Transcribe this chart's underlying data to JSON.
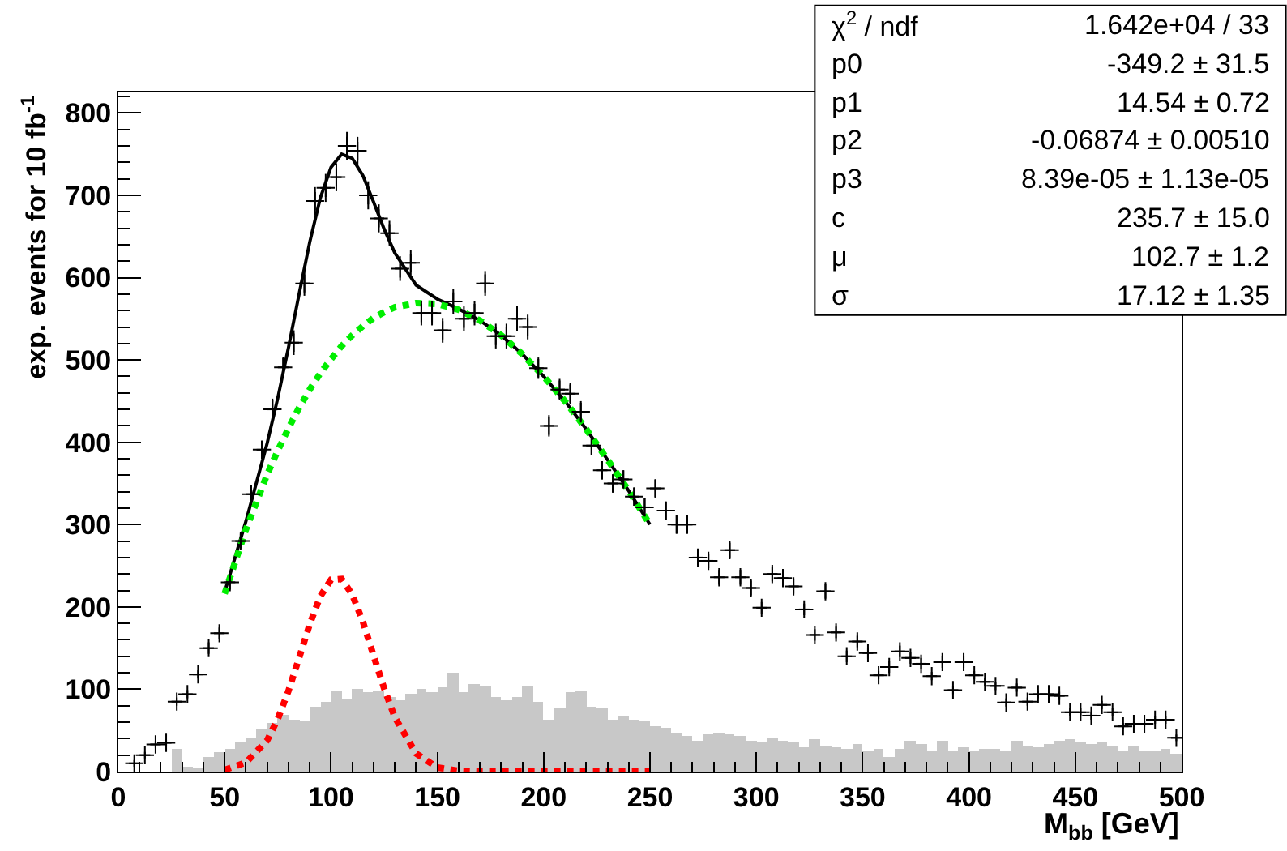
{
  "chart_data": {
    "type": "scatter",
    "xlabel": "M$_{bb}$ [GeV]",
    "ylabel": "exp. events for 10 fb$^{-1}$",
    "xlim": [
      0,
      500
    ],
    "xticks": [
      0,
      50,
      100,
      150,
      200,
      250,
      300,
      350,
      400,
      450,
      500
    ],
    "ylim": [
      0,
      825
    ],
    "yticks": [
      0,
      100,
      200,
      300,
      400,
      500,
      600,
      700,
      800
    ],
    "grid": false,
    "legend": false,
    "annotations": [
      "χ$^{2}$ / ndf",
      "1.642e+04 / 33",
      "p0",
      "-349.2 ± 31.5",
      "p1",
      "14.54 ± 0.72",
      "p2",
      "-0.06874 ± 0.00510",
      "p3",
      "8.39e-05 ± 1.13e-05",
      "c",
      "235.7 ± 15.0",
      "μ",
      "102.7 ± 1.2",
      "σ",
      "17.12 ± 1.35"
    ],
    "series": [
      {
        "type": "histogram",
        "color": "#c8c8c8",
        "bins": [
          0,
          5,
          10,
          15,
          20,
          25,
          30,
          35,
          40,
          45,
          50,
          55,
          60,
          65,
          70,
          75,
          80,
          85,
          90,
          95,
          100,
          105,
          110,
          115,
          120,
          125,
          130,
          135,
          140,
          145,
          150,
          155,
          160,
          165,
          170,
          175,
          180,
          185,
          190,
          195,
          200,
          205,
          210,
          215,
          220,
          225,
          230,
          235,
          240,
          245,
          250,
          255,
          260,
          265,
          270,
          275,
          280,
          285,
          290,
          295,
          300,
          305,
          310,
          315,
          320,
          325,
          330,
          335,
          340,
          345,
          350,
          355,
          360,
          365,
          370,
          375,
          380,
          385,
          390,
          395,
          400,
          405,
          410,
          415,
          420,
          425,
          430,
          435,
          440,
          445,
          450,
          455,
          460,
          465,
          470,
          475,
          480,
          485,
          490,
          495,
          500
        ],
        "values": [
          0,
          0,
          0,
          0,
          0,
          28,
          5,
          2,
          17,
          24,
          27,
          35,
          41,
          51,
          59,
          68,
          64,
          61,
          78,
          84,
          99,
          89,
          100,
          97,
          99,
          91,
          87,
          94,
          100,
          96,
          102,
          120,
          97,
          107,
          104,
          91,
          87,
          90,
          104,
          84,
          64,
          76,
          96,
          99,
          79,
          76,
          63,
          66,
          64,
          61,
          55,
          53,
          48,
          43,
          38,
          45,
          48,
          46,
          43,
          38,
          35,
          41,
          38,
          35,
          30,
          39,
          32,
          30,
          28,
          33,
          26,
          28,
          18,
          28,
          37,
          33,
          26,
          38,
          25,
          30,
          26,
          28,
          28,
          26,
          38,
          32,
          30,
          33,
          38,
          39,
          35,
          33,
          35,
          32,
          25,
          32,
          25,
          26,
          28,
          22
        ]
      },
      {
        "color": "#000000",
        "marker": "cross",
        "x": [
          7.5,
          12.5,
          17.5,
          22.5,
          27.5,
          32.5,
          37.5,
          42.5,
          47.5,
          52.5,
          57.5,
          62.5,
          67.5,
          72.5,
          77.5,
          82.5,
          87.5,
          92.5,
          97.5,
          102.5,
          107.5,
          112.5,
          117.5,
          122.5,
          127.5,
          132.5,
          137.5,
          142.5,
          147.5,
          152.5,
          157.5,
          162.5,
          167.5,
          172.5,
          177.5,
          182.5,
          187.5,
          192.5,
          197.5,
          202.5,
          207.5,
          212.5,
          217.5,
          222.5,
          227.5,
          232.5,
          237.5,
          242.5,
          247.5,
          252.5,
          257.5,
          262.5,
          267.5,
          272.5,
          277.5,
          282.5,
          287.5,
          292.5,
          297.5,
          302.5,
          307.5,
          312.5,
          317.5,
          322.5,
          327.5,
          332.5,
          337.5,
          342.5,
          347.5,
          352.5,
          357.5,
          362.5,
          367.5,
          372.5,
          377.5,
          382.5,
          387.5,
          392.5,
          397.5,
          402.5,
          407.5,
          412.5,
          417.5,
          422.5,
          427.5,
          432.5,
          437.5,
          442.5,
          447.5,
          452.5,
          457.5,
          462.5,
          467.5,
          472.5,
          477.5,
          482.5,
          487.5,
          492.5,
          497.5
        ],
        "values": [
          10,
          20,
          33,
          35,
          85,
          94,
          118,
          150,
          168,
          230,
          280,
          337,
          391,
          440,
          491,
          521,
          593,
          693,
          709,
          722,
          760,
          754,
          700,
          672,
          654,
          611,
          618,
          557,
          557,
          536,
          571,
          550,
          557,
          593,
          529,
          529,
          550,
          540,
          490,
          420,
          464,
          459,
          437,
          396,
          366,
          350,
          355,
          334,
          321,
          344,
          317,
          300,
          300,
          260,
          256,
          236,
          269,
          236,
          223,
          199,
          240,
          235,
          225,
          197,
          166,
          219,
          169,
          140,
          158,
          144,
          117,
          127,
          146,
          138,
          131,
          116,
          133,
          99,
          133,
          117,
          109,
          104,
          84,
          102,
          85,
          94,
          94,
          92,
          72,
          72,
          68,
          81,
          72,
          55,
          58,
          58,
          63,
          63,
          41
        ],
        "errors": [
          4,
          4,
          4,
          4,
          5,
          5,
          5,
          7,
          7,
          9,
          9,
          11,
          11,
          13,
          13,
          15,
          15,
          17,
          17,
          17,
          17,
          17,
          17,
          17,
          15,
          15,
          15,
          15,
          15,
          15,
          15,
          15,
          15,
          15,
          15,
          15,
          15,
          15,
          13,
          13,
          13,
          13,
          13,
          11,
          11,
          11,
          11,
          11,
          11,
          11,
          11,
          11,
          11,
          9,
          9,
          9,
          9,
          9,
          9,
          7,
          9,
          9,
          9,
          7,
          7,
          9,
          7,
          7,
          7,
          7,
          5,
          7,
          7,
          7,
          7,
          5,
          7,
          5,
          7,
          5,
          5,
          5,
          5,
          5,
          5,
          5,
          5,
          5,
          5,
          5,
          5,
          5,
          5,
          4,
          4,
          4,
          5,
          5,
          4
        ],
        "xerrors": [
          2.5,
          2.5,
          2.5,
          2.5,
          2.5,
          2.5,
          2.5,
          2.5,
          2.5,
          2.5,
          2.5,
          2.5,
          2.5,
          2.5,
          2.5,
          2.5,
          2.5,
          2.5,
          2.5,
          2.5,
          2.5,
          2.5,
          2.5,
          2.5,
          2.5,
          2.5,
          2.5,
          2.5,
          2.5,
          2.5,
          2.5,
          2.5,
          2.5,
          2.5,
          2.5,
          2.5,
          2.5,
          2.5,
          2.5,
          2.5,
          2.5,
          2.5,
          2.5,
          2.5,
          2.5,
          2.5,
          2.5,
          2.5,
          2.5,
          2.5,
          2.5,
          2.5,
          2.5,
          2.5,
          2.5,
          2.5,
          2.5,
          2.5,
          2.5,
          2.5,
          2.5,
          2.5,
          2.5,
          2.5,
          2.5,
          2.5,
          2.5,
          2.5,
          2.5,
          2.5,
          2.5,
          2.5,
          2.5,
          2.5,
          2.5,
          2.5,
          2.5,
          2.5,
          2.5,
          2.5,
          2.5,
          2.5,
          2.5,
          2.5,
          2.5,
          2.5,
          2.5,
          2.5,
          2.5,
          2.5,
          2.5,
          2.5,
          2.5,
          2.5,
          2.5,
          2.5,
          2.5,
          2.5,
          2.5
        ]
      },
      {
        "type": "line",
        "color": "#000000",
        "line_style": "solid",
        "x": [
          50,
          60,
          70,
          75,
          80,
          85,
          90,
          95,
          100,
          105,
          110,
          115,
          120,
          125,
          130,
          140,
          150,
          160,
          170,
          180,
          190,
          200,
          210,
          220,
          230,
          240,
          250
        ],
        "values": [
          218,
          304,
          399,
          454,
          515,
          580,
          643,
          697,
          734,
          750,
          745,
          724,
          692,
          659,
          630,
          591,
          574,
          562,
          548,
          530,
          507,
          480,
          450,
          416,
          379,
          341,
          300
        ]
      },
      {
        "type": "line",
        "color": "#00ee00",
        "line_style": "dotted",
        "x": [
          50,
          60,
          70,
          75,
          80,
          85,
          90,
          95,
          100,
          105,
          110,
          115,
          120,
          125,
          130,
          140,
          150,
          160,
          170,
          180,
          190,
          200,
          210,
          220,
          230,
          240,
          250
        ],
        "values": [
          216,
          294,
          361,
          390,
          417,
          442,
          464,
          484,
          501,
          517,
          530,
          541,
          551,
          558,
          564,
          569,
          568,
          561,
          548,
          530,
          507,
          480,
          450,
          416,
          379,
          341,
          300
        ]
      },
      {
        "type": "line",
        "color": "#ff0000",
        "line_style": "dotted",
        "x": [
          50,
          60,
          70,
          75,
          80,
          85,
          90,
          95,
          100,
          105,
          110,
          115,
          120,
          125,
          130,
          140,
          150,
          160,
          170,
          180,
          190,
          200,
          210,
          220,
          230,
          240,
          250
        ],
        "values": [
          2,
          11,
          38,
          64,
          98,
          138,
          179,
          213,
          233,
          234,
          215,
          182,
          141,
          101,
          66,
          22,
          5,
          1,
          0,
          0,
          0,
          0,
          0,
          0,
          0,
          0,
          0
        ]
      }
    ]
  }
}
